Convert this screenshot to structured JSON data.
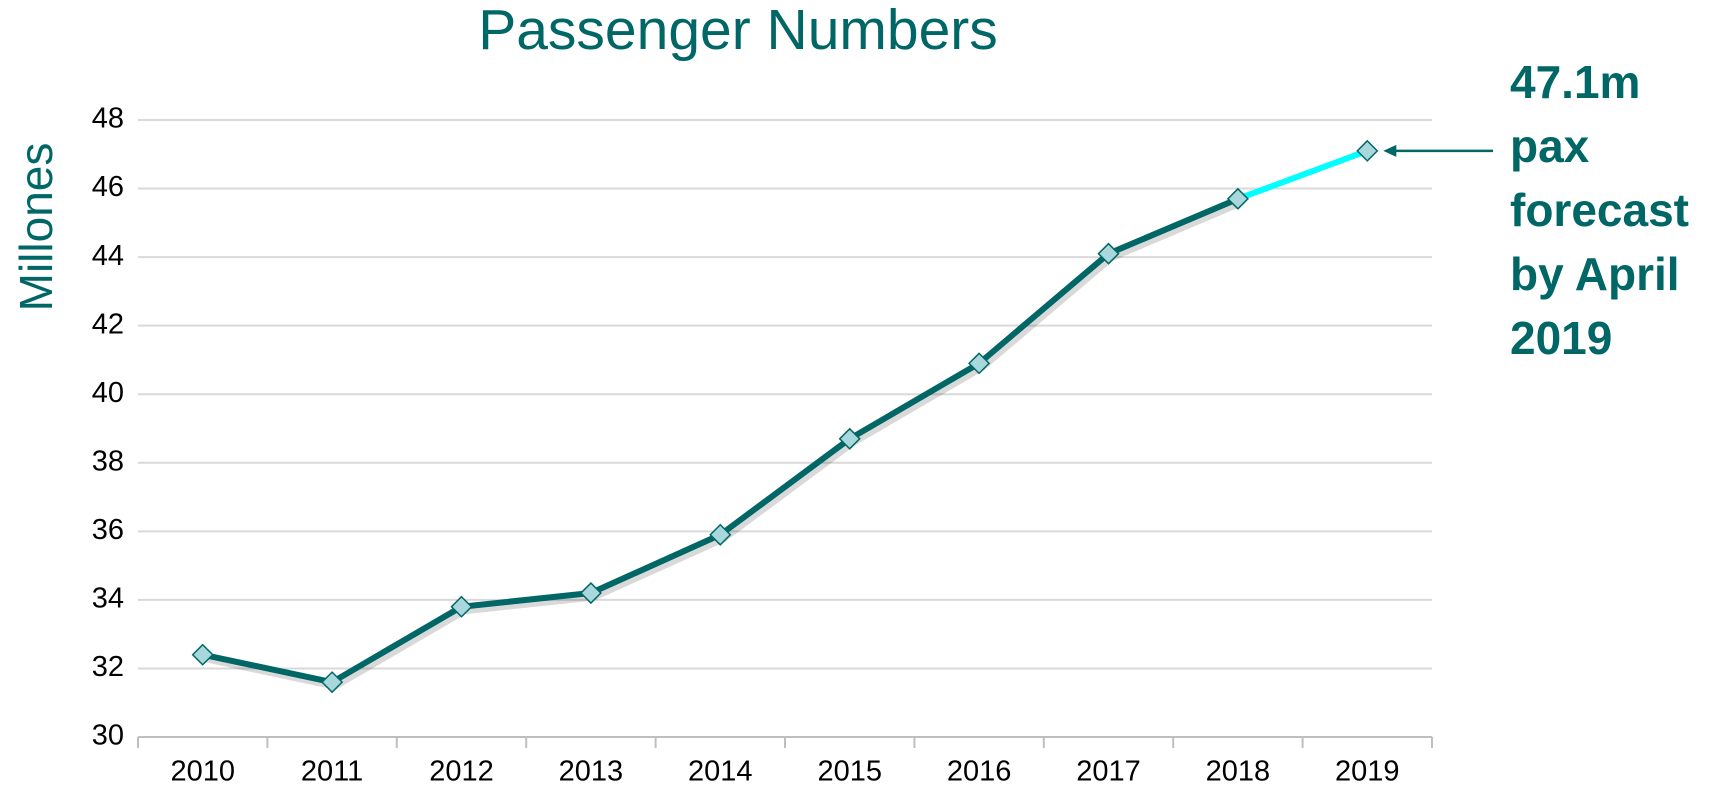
{
  "chart_data": {
    "type": "line",
    "title": "Passenger Numbers",
    "y_label": "Millones",
    "categories": [
      "2010",
      "2011",
      "2012",
      "2013",
      "2014",
      "2015",
      "2016",
      "2017",
      "2018",
      "2019"
    ],
    "values": [
      32.4,
      31.6,
      33.8,
      34.2,
      35.9,
      38.7,
      40.9,
      44.1,
      45.7,
      47.1
    ],
    "color": "#006666",
    "forecast_segment_color": "#00ffff",
    "marker_fill": "#a8d8dc",
    "ylim": [
      30,
      48
    ],
    "yticks": [
      30,
      32,
      34,
      36,
      38,
      40,
      42,
      44,
      46,
      48
    ],
    "grid": true,
    "annotation": [
      "47.1m",
      "pax",
      "forecast",
      "by April",
      "2019"
    ]
  }
}
